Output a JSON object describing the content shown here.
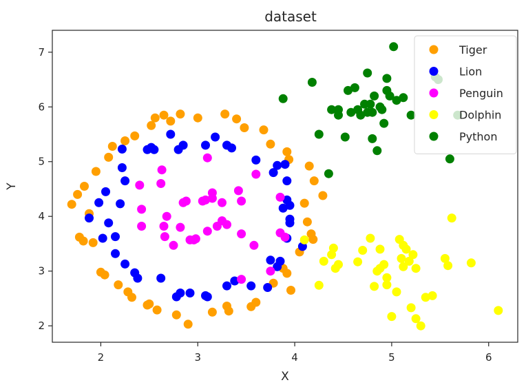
{
  "chart_data": {
    "type": "scatter",
    "title": "dataset",
    "xlabel": "X",
    "ylabel": "Y",
    "xlim": [
      1.5,
      6.3
    ],
    "ylim": [
      1.7,
      7.4
    ],
    "xticks": [
      2,
      3,
      4,
      5,
      6
    ],
    "yticks": [
      2,
      3,
      4,
      5,
      6,
      7
    ],
    "grid": false,
    "legend_position": "top-right",
    "series": [
      {
        "name": "Tiger",
        "color": "#ff9f00",
        "points": [
          [
            1.7,
            4.22
          ],
          [
            1.76,
            4.4
          ],
          [
            1.83,
            4.55
          ],
          [
            1.78,
            3.62
          ],
          [
            1.82,
            3.55
          ],
          [
            1.88,
            4.05
          ],
          [
            1.92,
            3.52
          ],
          [
            1.95,
            4.82
          ],
          [
            2.0,
            2.98
          ],
          [
            2.04,
            2.93
          ],
          [
            2.08,
            5.08
          ],
          [
            2.12,
            5.28
          ],
          [
            2.18,
            2.75
          ],
          [
            2.25,
            5.38
          ],
          [
            2.28,
            2.62
          ],
          [
            2.32,
            2.52
          ],
          [
            2.35,
            5.47
          ],
          [
            2.48,
            2.38
          ],
          [
            2.52,
            5.66
          ],
          [
            2.58,
            2.29
          ],
          [
            2.56,
            5.8
          ],
          [
            2.65,
            5.85
          ],
          [
            2.72,
            5.74
          ],
          [
            2.78,
            2.2
          ],
          [
            2.82,
            5.87
          ],
          [
            2.9,
            2.03
          ],
          [
            3.0,
            5.8
          ],
          [
            3.15,
            2.25
          ],
          [
            3.28,
            5.87
          ],
          [
            3.3,
            2.36
          ],
          [
            3.32,
            2.27
          ],
          [
            3.4,
            5.78
          ],
          [
            3.48,
            5.62
          ],
          [
            3.55,
            2.35
          ],
          [
            3.6,
            2.43
          ],
          [
            3.68,
            5.58
          ],
          [
            3.75,
            5.32
          ],
          [
            3.78,
            2.78
          ],
          [
            3.88,
            3.05
          ],
          [
            3.92,
            5.18
          ],
          [
            3.94,
            5.04
          ],
          [
            3.96,
            2.65
          ],
          [
            4.05,
            3.35
          ],
          [
            4.1,
            4.24
          ],
          [
            4.13,
            3.9
          ],
          [
            4.15,
            4.92
          ],
          [
            4.17,
            3.68
          ],
          [
            4.19,
            3.58
          ],
          [
            4.2,
            4.65
          ],
          [
            4.29,
            4.38
          ],
          [
            3.92,
            2.96
          ],
          [
            2.5,
            2.4
          ]
        ]
      },
      {
        "name": "Lion",
        "color": "#0000ff",
        "points": [
          [
            1.88,
            3.97
          ],
          [
            1.98,
            4.25
          ],
          [
            2.02,
            3.6
          ],
          [
            2.05,
            4.45
          ],
          [
            2.08,
            3.88
          ],
          [
            2.15,
            3.63
          ],
          [
            2.15,
            3.32
          ],
          [
            2.2,
            4.23
          ],
          [
            2.22,
            5.23
          ],
          [
            2.22,
            4.89
          ],
          [
            2.25,
            3.13
          ],
          [
            2.25,
            4.65
          ],
          [
            2.35,
            2.97
          ],
          [
            2.38,
            2.87
          ],
          [
            2.48,
            5.22
          ],
          [
            2.52,
            5.26
          ],
          [
            2.55,
            5.22
          ],
          [
            2.62,
            2.87
          ],
          [
            2.72,
            5.5
          ],
          [
            2.78,
            2.53
          ],
          [
            2.8,
            5.22
          ],
          [
            2.82,
            2.6
          ],
          [
            2.85,
            5.3
          ],
          [
            2.92,
            2.6
          ],
          [
            3.08,
            2.55
          ],
          [
            3.08,
            5.3
          ],
          [
            3.1,
            2.53
          ],
          [
            3.18,
            5.45
          ],
          [
            3.3,
            2.73
          ],
          [
            3.3,
            5.3
          ],
          [
            3.35,
            5.25
          ],
          [
            3.38,
            2.82
          ],
          [
            3.55,
            2.73
          ],
          [
            3.6,
            5.03
          ],
          [
            3.72,
            2.7
          ],
          [
            3.75,
            3.2
          ],
          [
            3.78,
            4.8
          ],
          [
            3.82,
            4.93
          ],
          [
            3.85,
            3.18
          ],
          [
            3.88,
            4.15
          ],
          [
            3.9,
            4.95
          ],
          [
            3.92,
            3.6
          ],
          [
            3.92,
            4.65
          ],
          [
            3.92,
            4.3
          ],
          [
            3.95,
            4.2
          ],
          [
            3.95,
            3.95
          ],
          [
            3.95,
            3.88
          ],
          [
            4.08,
            3.45
          ],
          [
            3.82,
            3.08
          ]
        ]
      },
      {
        "name": "Penguin",
        "color": "#ff00ff",
        "points": [
          [
            2.4,
            4.57
          ],
          [
            2.42,
            4.13
          ],
          [
            2.42,
            3.82
          ],
          [
            2.62,
            4.6
          ],
          [
            2.63,
            4.85
          ],
          [
            2.65,
            3.82
          ],
          [
            2.66,
            3.63
          ],
          [
            2.68,
            4.0
          ],
          [
            2.75,
            3.47
          ],
          [
            2.82,
            3.8
          ],
          [
            2.85,
            4.25
          ],
          [
            2.88,
            4.28
          ],
          [
            2.92,
            3.57
          ],
          [
            2.96,
            3.57
          ],
          [
            2.98,
            3.59
          ],
          [
            3.05,
            4.28
          ],
          [
            3.08,
            4.3
          ],
          [
            3.1,
            3.73
          ],
          [
            3.1,
            5.07
          ],
          [
            3.15,
            4.43
          ],
          [
            3.15,
            4.33
          ],
          [
            3.2,
            3.82
          ],
          [
            3.25,
            3.92
          ],
          [
            3.3,
            3.85
          ],
          [
            3.42,
            4.47
          ],
          [
            3.45,
            4.28
          ],
          [
            3.45,
            3.68
          ],
          [
            3.45,
            2.85
          ],
          [
            3.58,
            3.47
          ],
          [
            3.6,
            4.77
          ],
          [
            3.75,
            3.0
          ],
          [
            3.85,
            4.35
          ],
          [
            3.85,
            3.7
          ],
          [
            3.9,
            3.62
          ],
          [
            3.25,
            4.25
          ]
        ]
      },
      {
        "name": "Dolphin",
        "color": "#ffff00",
        "points": [
          [
            4.1,
            3.57
          ],
          [
            4.25,
            2.74
          ],
          [
            4.3,
            3.18
          ],
          [
            4.38,
            3.3
          ],
          [
            4.4,
            3.42
          ],
          [
            4.42,
            3.05
          ],
          [
            4.45,
            3.12
          ],
          [
            4.65,
            3.17
          ],
          [
            4.7,
            3.38
          ],
          [
            4.78,
            3.6
          ],
          [
            4.82,
            2.72
          ],
          [
            4.85,
            3.0
          ],
          [
            4.88,
            3.4
          ],
          [
            4.88,
            3.05
          ],
          [
            4.92,
            3.12
          ],
          [
            4.95,
            2.75
          ],
          [
            4.95,
            2.88
          ],
          [
            5.0,
            2.17
          ],
          [
            5.05,
            2.62
          ],
          [
            5.08,
            3.58
          ],
          [
            5.1,
            3.23
          ],
          [
            5.12,
            3.47
          ],
          [
            5.12,
            3.08
          ],
          [
            5.15,
            3.4
          ],
          [
            5.18,
            3.18
          ],
          [
            5.2,
            2.33
          ],
          [
            5.22,
            3.3
          ],
          [
            5.25,
            3.05
          ],
          [
            5.25,
            2.13
          ],
          [
            5.35,
            2.52
          ],
          [
            5.42,
            2.55
          ],
          [
            5.55,
            3.23
          ],
          [
            5.58,
            3.1
          ],
          [
            5.62,
            3.97
          ],
          [
            5.82,
            3.15
          ],
          [
            6.1,
            2.28
          ],
          [
            5.3,
            2.0
          ]
        ]
      },
      {
        "name": "Python",
        "color": "#008000",
        "points": [
          [
            3.88,
            6.15
          ],
          [
            4.18,
            6.45
          ],
          [
            4.25,
            5.5
          ],
          [
            4.35,
            4.78
          ],
          [
            4.38,
            5.95
          ],
          [
            4.45,
            5.85
          ],
          [
            4.45,
            5.95
          ],
          [
            4.52,
            5.45
          ],
          [
            4.55,
            6.3
          ],
          [
            4.58,
            5.9
          ],
          [
            4.62,
            6.35
          ],
          [
            4.65,
            5.95
          ],
          [
            4.68,
            5.85
          ],
          [
            4.72,
            6.05
          ],
          [
            4.75,
            5.9
          ],
          [
            4.75,
            6.62
          ],
          [
            4.78,
            6.05
          ],
          [
            4.8,
            5.42
          ],
          [
            4.8,
            5.9
          ],
          [
            4.82,
            6.2
          ],
          [
            4.85,
            5.2
          ],
          [
            4.88,
            6.0
          ],
          [
            4.9,
            5.95
          ],
          [
            4.92,
            5.7
          ],
          [
            4.95,
            6.52
          ],
          [
            4.95,
            6.3
          ],
          [
            4.98,
            6.2
          ],
          [
            5.02,
            7.1
          ],
          [
            5.05,
            6.12
          ],
          [
            5.12,
            6.17
          ],
          [
            5.2,
            5.85
          ],
          [
            5.45,
            6.55
          ],
          [
            5.48,
            6.5
          ],
          [
            5.6,
            5.05
          ],
          [
            5.68,
            5.85
          ]
        ]
      }
    ]
  }
}
